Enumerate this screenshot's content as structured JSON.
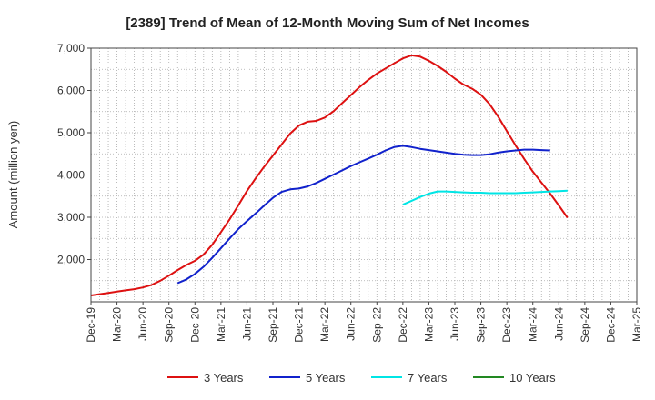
{
  "chart_data": {
    "type": "line",
    "title": "[2389]  Trend of Mean of 12-Month Moving Sum of Net Incomes",
    "ylabel": "Amount (million yen)",
    "xlabel": "",
    "ylim": [
      1000,
      7000
    ],
    "yticks": [
      2000,
      3000,
      4000,
      5000,
      6000,
      7000
    ],
    "ytick_labels": [
      "2,000",
      "3,000",
      "4,000",
      "5,000",
      "6,000",
      "7,000"
    ],
    "x_start": "2019-12",
    "x_end": "2025-03",
    "xtick_labels": [
      "Dec-19",
      "Mar-20",
      "Jun-20",
      "Sep-20",
      "Dec-20",
      "Mar-21",
      "Jun-21",
      "Sep-21",
      "Dec-21",
      "Mar-22",
      "Jun-22",
      "Sep-22",
      "Dec-22",
      "Mar-23",
      "Jun-23",
      "Sep-23",
      "Dec-23",
      "Mar-24",
      "Jun-24",
      "Sep-24",
      "Dec-24",
      "Mar-25"
    ],
    "grid": true,
    "legend_position": "bottom",
    "series": [
      {
        "name": "3 Years",
        "color": "#dd1111",
        "points": [
          [
            "2019-12",
            1150
          ],
          [
            "2020-01",
            1180
          ],
          [
            "2020-02",
            1210
          ],
          [
            "2020-03",
            1240
          ],
          [
            "2020-04",
            1270
          ],
          [
            "2020-05",
            1300
          ],
          [
            "2020-06",
            1340
          ],
          [
            "2020-07",
            1400
          ],
          [
            "2020-08",
            1500
          ],
          [
            "2020-09",
            1620
          ],
          [
            "2020-10",
            1750
          ],
          [
            "2020-11",
            1870
          ],
          [
            "2020-12",
            1970
          ],
          [
            "2021-01",
            2120
          ],
          [
            "2021-02",
            2350
          ],
          [
            "2021-03",
            2650
          ],
          [
            "2021-04",
            2950
          ],
          [
            "2021-05",
            3280
          ],
          [
            "2021-06",
            3620
          ],
          [
            "2021-07",
            3920
          ],
          [
            "2021-08",
            4200
          ],
          [
            "2021-09",
            4460
          ],
          [
            "2021-10",
            4720
          ],
          [
            "2021-11",
            4980
          ],
          [
            "2021-12",
            5170
          ],
          [
            "2022-01",
            5260
          ],
          [
            "2022-02",
            5280
          ],
          [
            "2022-03",
            5360
          ],
          [
            "2022-04",
            5510
          ],
          [
            "2022-05",
            5700
          ],
          [
            "2022-06",
            5890
          ],
          [
            "2022-07",
            6080
          ],
          [
            "2022-08",
            6250
          ],
          [
            "2022-09",
            6400
          ],
          [
            "2022-10",
            6520
          ],
          [
            "2022-11",
            6640
          ],
          [
            "2022-12",
            6760
          ],
          [
            "2023-01",
            6830
          ],
          [
            "2023-02",
            6800
          ],
          [
            "2023-03",
            6700
          ],
          [
            "2023-04",
            6580
          ],
          [
            "2023-05",
            6440
          ],
          [
            "2023-06",
            6280
          ],
          [
            "2023-07",
            6140
          ],
          [
            "2023-08",
            6040
          ],
          [
            "2023-09",
            5900
          ],
          [
            "2023-10",
            5680
          ],
          [
            "2023-11",
            5380
          ],
          [
            "2023-12",
            5040
          ],
          [
            "2024-01",
            4700
          ],
          [
            "2024-02",
            4380
          ],
          [
            "2024-03",
            4080
          ],
          [
            "2024-04",
            3820
          ],
          [
            "2024-05",
            3560
          ],
          [
            "2024-06",
            3280
          ],
          [
            "2024-07",
            2990
          ]
        ]
      },
      {
        "name": "5 Years",
        "color": "#1122cc",
        "points": [
          [
            "2020-10",
            1440
          ],
          [
            "2020-11",
            1530
          ],
          [
            "2020-12",
            1660
          ],
          [
            "2021-01",
            1830
          ],
          [
            "2021-02",
            2040
          ],
          [
            "2021-03",
            2270
          ],
          [
            "2021-04",
            2500
          ],
          [
            "2021-05",
            2720
          ],
          [
            "2021-06",
            2910
          ],
          [
            "2021-07",
            3090
          ],
          [
            "2021-08",
            3280
          ],
          [
            "2021-09",
            3460
          ],
          [
            "2021-10",
            3600
          ],
          [
            "2021-11",
            3660
          ],
          [
            "2021-12",
            3680
          ],
          [
            "2022-01",
            3730
          ],
          [
            "2022-02",
            3810
          ],
          [
            "2022-03",
            3910
          ],
          [
            "2022-04",
            4010
          ],
          [
            "2022-05",
            4110
          ],
          [
            "2022-06",
            4210
          ],
          [
            "2022-07",
            4300
          ],
          [
            "2022-08",
            4390
          ],
          [
            "2022-09",
            4480
          ],
          [
            "2022-10",
            4580
          ],
          [
            "2022-11",
            4660
          ],
          [
            "2022-12",
            4690
          ],
          [
            "2023-01",
            4660
          ],
          [
            "2023-02",
            4620
          ],
          [
            "2023-03",
            4590
          ],
          [
            "2023-04",
            4560
          ],
          [
            "2023-05",
            4530
          ],
          [
            "2023-06",
            4500
          ],
          [
            "2023-07",
            4480
          ],
          [
            "2023-08",
            4470
          ],
          [
            "2023-09",
            4470
          ],
          [
            "2023-10",
            4490
          ],
          [
            "2023-11",
            4530
          ],
          [
            "2023-12",
            4560
          ],
          [
            "2024-01",
            4580
          ],
          [
            "2024-02",
            4600
          ],
          [
            "2024-03",
            4600
          ],
          [
            "2024-04",
            4590
          ],
          [
            "2024-05",
            4580
          ]
        ]
      },
      {
        "name": "7 Years",
        "color": "#00e5e5",
        "points": [
          [
            "2022-12",
            3300
          ],
          [
            "2023-01",
            3390
          ],
          [
            "2023-02",
            3480
          ],
          [
            "2023-03",
            3560
          ],
          [
            "2023-04",
            3610
          ],
          [
            "2023-05",
            3610
          ],
          [
            "2023-06",
            3600
          ],
          [
            "2023-07",
            3590
          ],
          [
            "2023-08",
            3580
          ],
          [
            "2023-09",
            3580
          ],
          [
            "2023-10",
            3570
          ],
          [
            "2023-11",
            3570
          ],
          [
            "2023-12",
            3570
          ],
          [
            "2024-01",
            3570
          ],
          [
            "2024-02",
            3580
          ],
          [
            "2024-03",
            3590
          ],
          [
            "2024-04",
            3600
          ],
          [
            "2024-05",
            3610
          ],
          [
            "2024-06",
            3620
          ],
          [
            "2024-07",
            3630
          ]
        ]
      },
      {
        "name": "10 Years",
        "color": "#228822",
        "points": []
      }
    ]
  }
}
